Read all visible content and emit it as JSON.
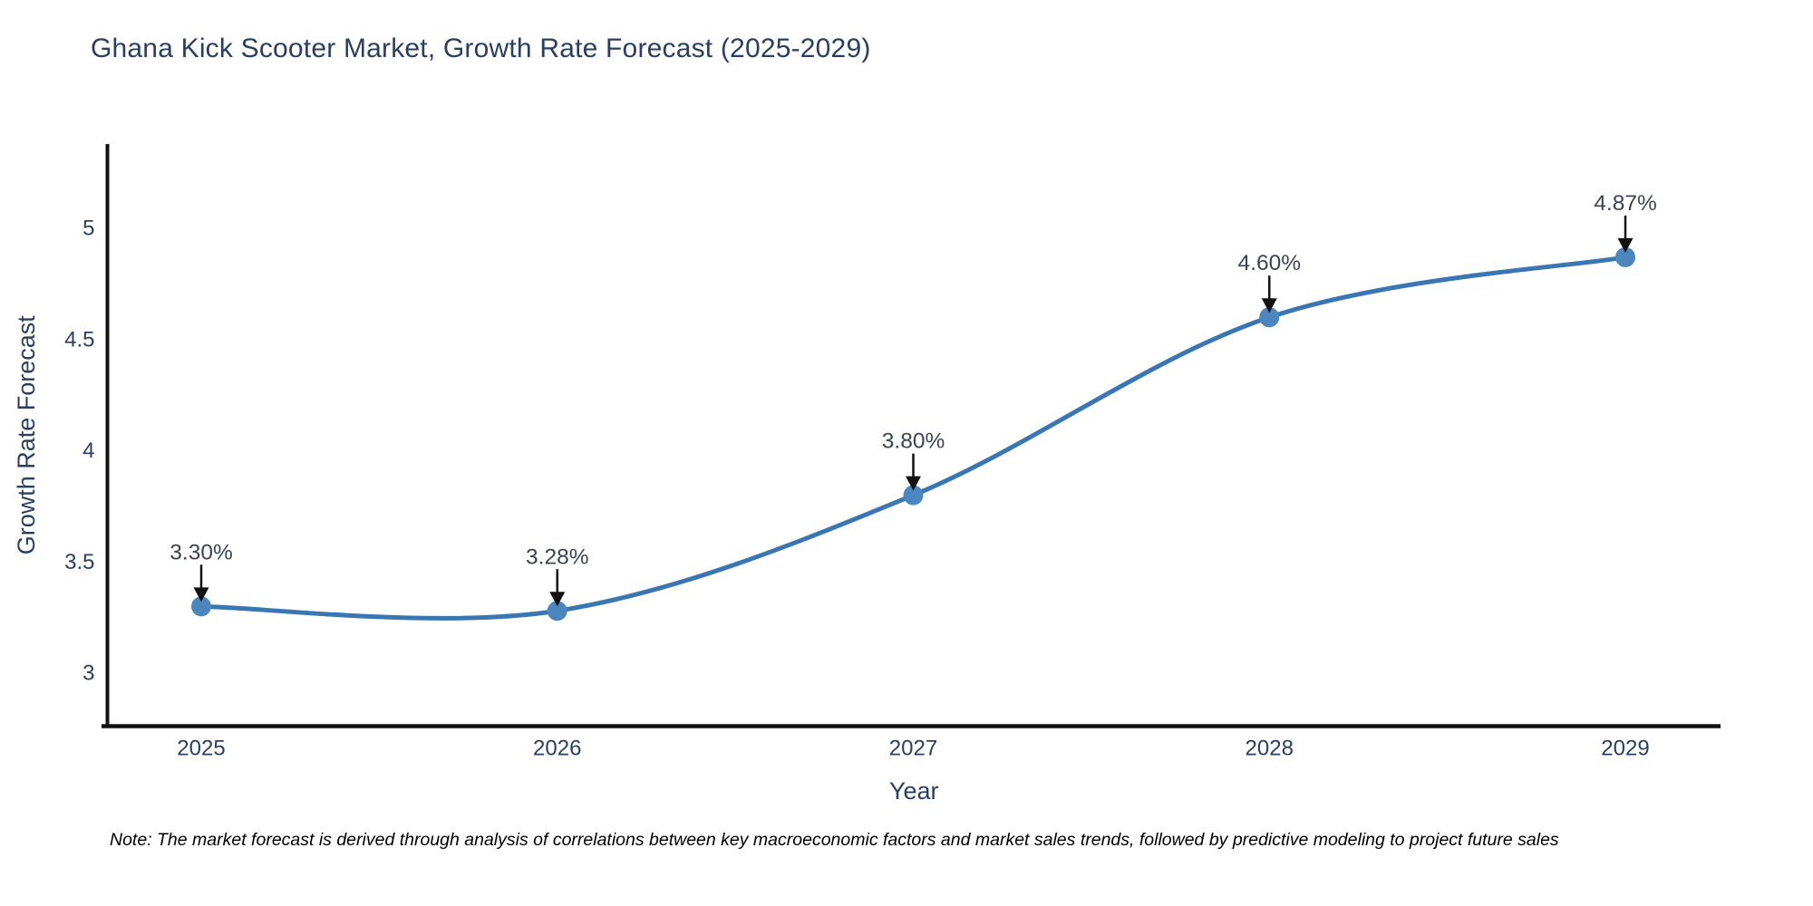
{
  "chart_data": {
    "type": "line",
    "title": "Ghana Kick Scooter Market, Growth Rate Forecast (2025-2029)",
    "xlabel": "Year",
    "ylabel": "Growth Rate Forecast",
    "categories": [
      "2025",
      "2026",
      "2027",
      "2028",
      "2029"
    ],
    "values": [
      3.3,
      3.28,
      3.8,
      4.6,
      4.87
    ],
    "point_labels": [
      "3.30%",
      "3.28%",
      "3.80%",
      "4.60%",
      "4.87%"
    ],
    "yticks": [
      3,
      3.5,
      4,
      4.5,
      5
    ],
    "ylim": [
      2.76,
      5.37
    ],
    "grid": false,
    "legend": "none",
    "line_smooth": true,
    "colors": {
      "line": "#3a76b1",
      "marker": "#4c86bf",
      "axis_line": "#111111",
      "tick_text": "#2a3f5f",
      "axis_title_text": "#2a3f5f",
      "title_text": "#2a3f5f",
      "annotation_text": "#3b4450",
      "annotation_arrow": "#111111"
    }
  },
  "footnote": {
    "text": "Note: The market forecast is derived through analysis of correlations between key macroeconomic factors and market sales trends, followed by predictive modeling to project future sales"
  }
}
